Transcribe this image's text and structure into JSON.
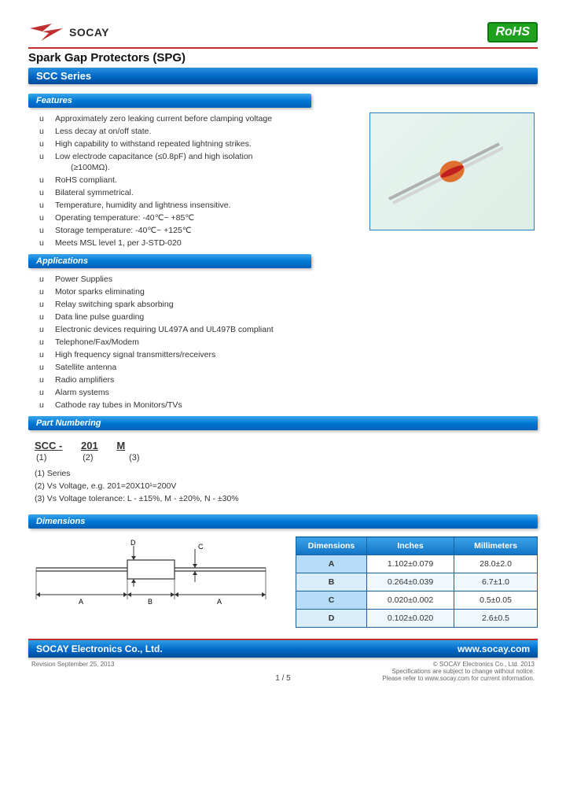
{
  "header": {
    "brand": "SOCAY",
    "rohs": "RoHS",
    "title": "Spark Gap Protectors (SPG)",
    "series": "SCC Series"
  },
  "features": {
    "label": "Features",
    "items": [
      "Approximately zero leaking current before clamping voltage",
      "Less decay at on/off state.",
      "High capability to withstand repeated lightning strikes.",
      "Low electrode capacitance (≤0.8pF) and high isolation",
      "(≥100MΩ).",
      "RoHS compliant.",
      "Bilateral symmetrical.",
      "Temperature, humidity and lightness insensitive.",
      "Operating temperature: -40℃~ +85℃",
      "Storage temperature: -40℃~ +125℃",
      "Meets MSL level 1, per J-STD-020"
    ]
  },
  "applications": {
    "label": "Applications",
    "items": [
      "Power Supplies",
      "Motor sparks eliminating",
      "Relay switching spark absorbing",
      "Data line pulse guarding",
      "Electronic devices requiring UL497A and UL497B compliant",
      "Telephone/Fax/Modem",
      "High frequency signal transmitters/receivers",
      "Satellite antenna",
      "Radio amplifiers",
      "Alarm systems",
      "Cathode ray tubes in Monitors/TVs"
    ]
  },
  "part_numbering": {
    "label": "Part Numbering",
    "example": {
      "p1": "SCC -",
      "p2": "201",
      "p3": "M"
    },
    "indices": {
      "i1": "(1)",
      "i2": "(2)",
      "i3": "(3)"
    },
    "legend": [
      "(1)  Series",
      "(2)  Vs Voltage, e.g. 201=20X10¹=200V",
      "(3)  Vs Voltage tolerance: L - ±15%, M - ±20%, N - ±30%"
    ]
  },
  "dimensions": {
    "label": "Dimensions",
    "headers": [
      "Dimensions",
      "Inches",
      "Millimeters"
    ],
    "rows": [
      {
        "k": "A",
        "in": "1.102±0.079",
        "mm": "28.0±2.0"
      },
      {
        "k": "B",
        "in": "0.264±0.039",
        "mm": "6.7±1.0"
      },
      {
        "k": "C",
        "in": "0.020±0.002",
        "mm": "0.5±0.05"
      },
      {
        "k": "D",
        "in": "0.102±0.020",
        "mm": "2.6±0.5"
      }
    ],
    "drawing_labels": {
      "A": "A",
      "B": "B",
      "C": "C",
      "D": "D"
    }
  },
  "footer": {
    "company": "SOCAY Electronics Co., Ltd.",
    "url": "www.socay.com",
    "revision": "Revision September 25, 2013",
    "page": "1 / 5",
    "copyright": "© SOCAY Electronics Co., Ltd. 2013",
    "note1": "Specifications are subject to change without notice.",
    "note2": "Please refer to www.socay.com for current information."
  },
  "colors": {
    "accent_red": "#c03030",
    "bar_blue_top": "#2790e0",
    "bar_blue_bot": "#004a9a",
    "rohs_green": "#1fa01f",
    "table_border": "#1a5fa0",
    "table_head_cell": "#b6dcf7"
  }
}
